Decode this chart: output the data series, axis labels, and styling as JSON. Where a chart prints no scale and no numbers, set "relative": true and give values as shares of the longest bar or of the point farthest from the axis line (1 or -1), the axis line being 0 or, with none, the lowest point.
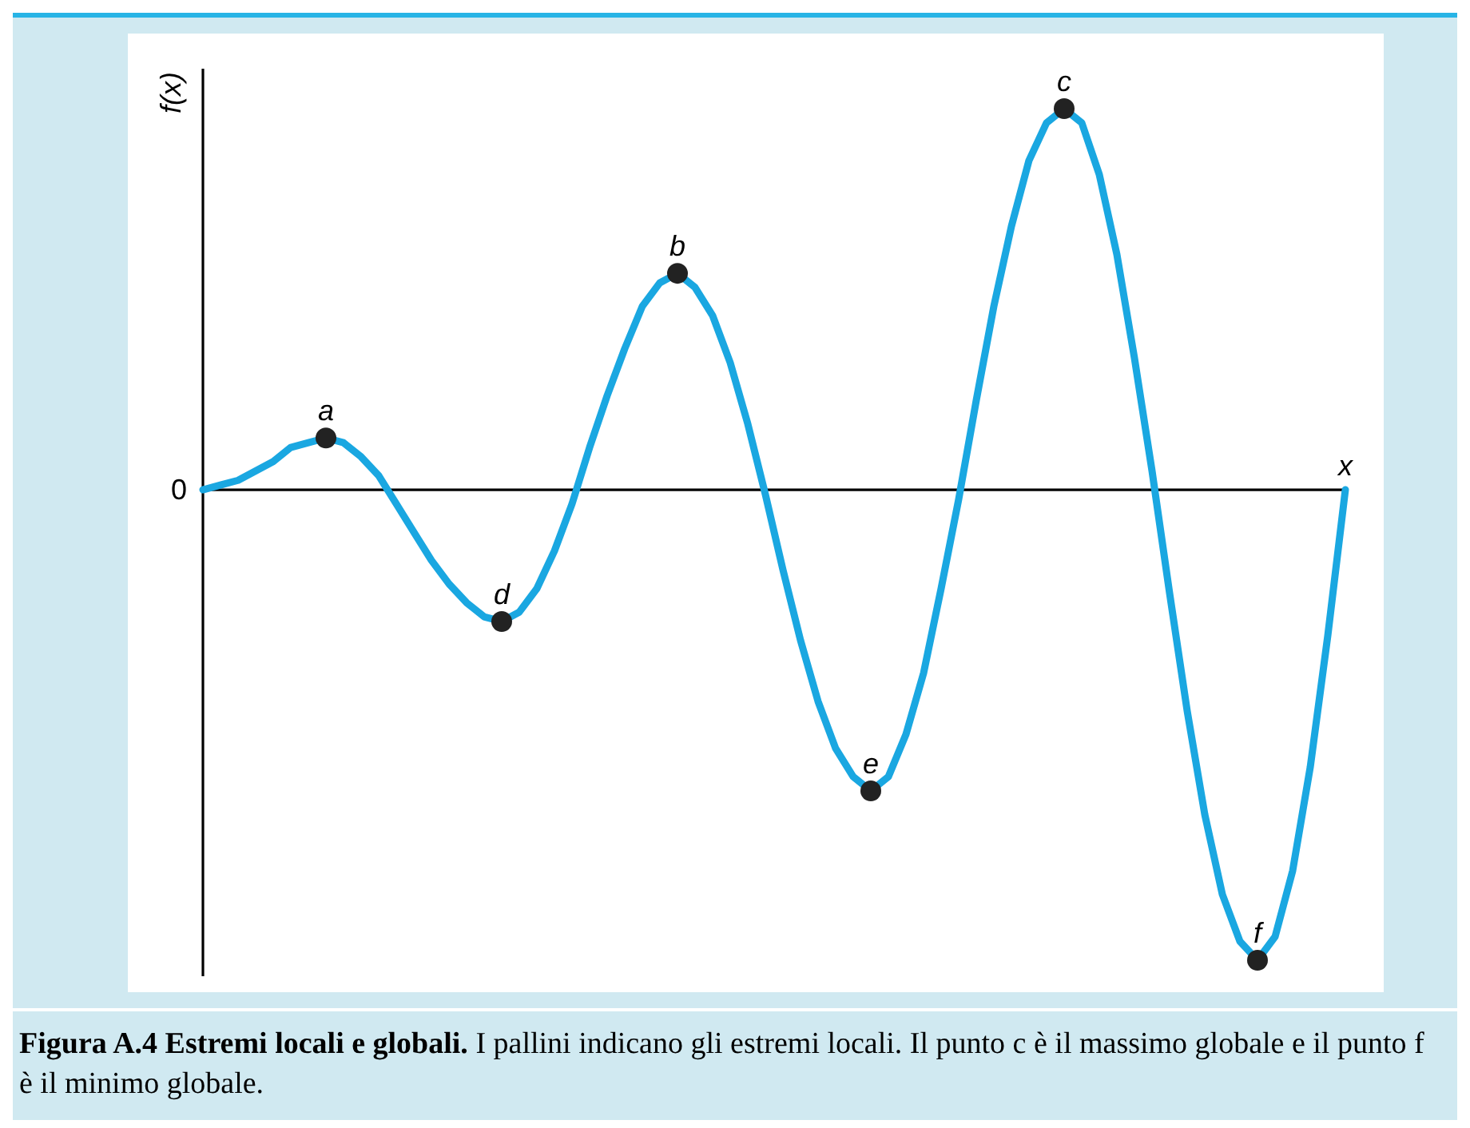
{
  "chart_data": {
    "type": "line",
    "relative": true,
    "xlabel": "x",
    "ylabel": "f(x)",
    "categories": [
      null,
      null,
      null,
      null,
      null,
      null,
      null,
      null,
      null,
      null,
      null,
      null,
      null,
      null,
      null,
      null,
      null,
      null,
      null,
      null,
      null,
      null,
      null,
      null,
      null,
      null,
      null,
      null,
      null,
      null,
      null,
      null,
      null,
      null,
      null,
      null,
      null,
      null,
      null,
      null,
      null,
      null,
      null,
      null,
      null,
      null,
      null,
      null,
      null,
      null,
      null,
      null,
      null,
      null,
      null,
      null,
      null,
      null,
      null,
      null,
      null,
      null,
      null,
      null,
      null,
      null
    ],
    "series": [
      {
        "color": "#1aa7e1",
        "values": [
          0,
          0.01,
          0.02,
          0.04,
          0.06,
          0.09,
          0.1,
          0.11,
          0.1,
          0.07,
          0.03,
          -0.03,
          -0.09,
          -0.15,
          -0.2,
          -0.24,
          -0.27,
          -0.28,
          -0.26,
          -0.21,
          -0.13,
          -0.03,
          0.09,
          0.2,
          0.3,
          0.39,
          0.44,
          0.46,
          0.43,
          0.37,
          0.27,
          0.14,
          -0.01,
          -0.17,
          -0.32,
          -0.45,
          -0.55,
          -0.61,
          -0.64,
          -0.61,
          -0.52,
          -0.39,
          -0.21,
          -0.02,
          0.19,
          0.39,
          0.56,
          0.7,
          0.78,
          0.81,
          0.78,
          0.67,
          0.5,
          0.28,
          0.04,
          -0.22,
          -0.47,
          -0.69,
          -0.86,
          -0.96,
          -1,
          -0.95,
          -0.81,
          -0.59,
          -0.31,
          0
        ]
      }
    ],
    "ref_lines": [
      {
        "axis": "y",
        "value": 0,
        "label": "0"
      }
    ],
    "annotations": [
      {
        "text": "a",
        "y": 0.11
      },
      {
        "text": "d",
        "y": -0.28
      },
      {
        "text": "b",
        "y": 0.46
      },
      {
        "text": "e",
        "y": -0.64
      },
      {
        "text": "c",
        "y": 0.81
      },
      {
        "text": "f",
        "y": -1
      },
      "Figura A.4    Estremi locali e globali.",
      "I pallini indicano gli estremi locali. Il punto c è il massimo globale e il punto f è il minimo globale."
    ]
  }
}
